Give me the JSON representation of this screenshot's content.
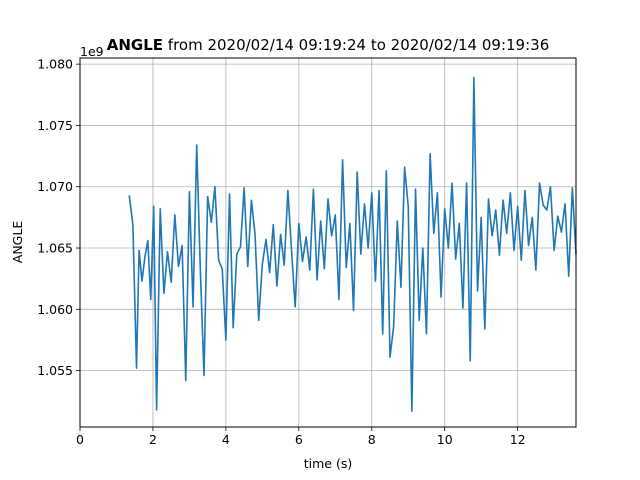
{
  "chart_data": {
    "type": "line",
    "title_bold": "ANGLE",
    "title_rest": " from 2020/02/14 09:19:24 to 2020/02/14 09:19:36",
    "xlabel": "time (s)",
    "ylabel": "ANGLE",
    "y_offset_label": "1e9",
    "xlim": [
      0,
      13.6
    ],
    "ylim": [
      1.0504,
      1.0805
    ],
    "x_ticks": [
      0,
      2,
      4,
      6,
      8,
      10,
      12
    ],
    "x_tick_labels": [
      "0",
      "2",
      "4",
      "6",
      "8",
      "10",
      "12"
    ],
    "y_ticks": [
      1.055,
      1.06,
      1.065,
      1.07,
      1.075,
      1.08
    ],
    "y_tick_labels": [
      "1.055",
      "1.060",
      "1.065",
      "1.070",
      "1.075",
      "1.080"
    ],
    "grid": true,
    "colors": {
      "line": "#1f77b4",
      "grid": "#b0b0b0",
      "axes": "#000000"
    },
    "series": [
      {
        "x": [
          1.35,
          1.45,
          1.55,
          1.62,
          1.7,
          1.78,
          1.86,
          1.94,
          2.02,
          2.1,
          2.2,
          2.3,
          2.4,
          2.5,
          2.6,
          2.7,
          2.8,
          2.9,
          3.0,
          3.1,
          3.2,
          3.3,
          3.4,
          3.5,
          3.6,
          3.7,
          3.8,
          3.9,
          4.0,
          4.1,
          4.2,
          4.3,
          4.4,
          4.5,
          4.6,
          4.7,
          4.8,
          4.9,
          5.0,
          5.1,
          5.2,
          5.3,
          5.4,
          5.5,
          5.6,
          5.7,
          5.8,
          5.9,
          6.0,
          6.1,
          6.2,
          6.3,
          6.4,
          6.5,
          6.6,
          6.7,
          6.8,
          6.9,
          7.0,
          7.1,
          7.2,
          7.3,
          7.4,
          7.5,
          7.6,
          7.7,
          7.8,
          7.9,
          8.0,
          8.1,
          8.2,
          8.3,
          8.4,
          8.5,
          8.6,
          8.7,
          8.8,
          8.9,
          9.0,
          9.1,
          9.2,
          9.3,
          9.4,
          9.5,
          9.6,
          9.7,
          9.8,
          9.9,
          10.0,
          10.1,
          10.2,
          10.3,
          10.4,
          10.5,
          10.6,
          10.7,
          10.8,
          10.9,
          11.0,
          11.1,
          11.2,
          11.3,
          11.4,
          11.5,
          11.6,
          11.7,
          11.8,
          11.9,
          12.0,
          12.1,
          12.2,
          12.3,
          12.4,
          12.5,
          12.6,
          12.7,
          12.8,
          12.9,
          13.0,
          13.1,
          13.2,
          13.3,
          13.4,
          13.5,
          13.6
        ],
        "y": [
          1.0693,
          1.0669,
          1.0552,
          1.0648,
          1.0623,
          1.0643,
          1.0656,
          1.0608,
          1.0684,
          1.0518,
          1.0682,
          1.0613,
          1.0647,
          1.0622,
          1.0677,
          1.0635,
          1.0652,
          1.0542,
          1.0696,
          1.0602,
          1.0734,
          1.0632,
          1.0546,
          1.0692,
          1.0671,
          1.07,
          1.064,
          1.0633,
          1.0575,
          1.0694,
          1.0585,
          1.0645,
          1.0651,
          1.0699,
          1.0635,
          1.0689,
          1.0661,
          1.0591,
          1.0637,
          1.0657,
          1.063,
          1.0669,
          1.0619,
          1.0661,
          1.0636,
          1.0697,
          1.0648,
          1.0602,
          1.067,
          1.0639,
          1.0659,
          1.0632,
          1.0698,
          1.0624,
          1.0672,
          1.0633,
          1.069,
          1.066,
          1.0677,
          1.0608,
          1.0722,
          1.0634,
          1.067,
          1.0599,
          1.0712,
          1.0645,
          1.0686,
          1.065,
          1.0695,
          1.0623,
          1.0697,
          1.058,
          1.0713,
          1.0561,
          1.0586,
          1.0672,
          1.0618,
          1.0716,
          1.0684,
          1.0517,
          1.0698,
          1.0591,
          1.065,
          1.058,
          1.0727,
          1.0662,
          1.0695,
          1.061,
          1.0682,
          1.065,
          1.0703,
          1.0641,
          1.067,
          1.0601,
          1.0703,
          1.0558,
          1.0789,
          1.0615,
          1.0675,
          1.0584,
          1.069,
          1.066,
          1.0681,
          1.0644,
          1.0689,
          1.0662,
          1.0695,
          1.0648,
          1.0684,
          1.064,
          1.0697,
          1.0652,
          1.0675,
          1.0632,
          1.0703,
          1.0685,
          1.0681,
          1.07,
          1.0648,
          1.0676,
          1.0663,
          1.0686,
          1.0627,
          1.0699,
          1.0645
        ]
      }
    ]
  }
}
